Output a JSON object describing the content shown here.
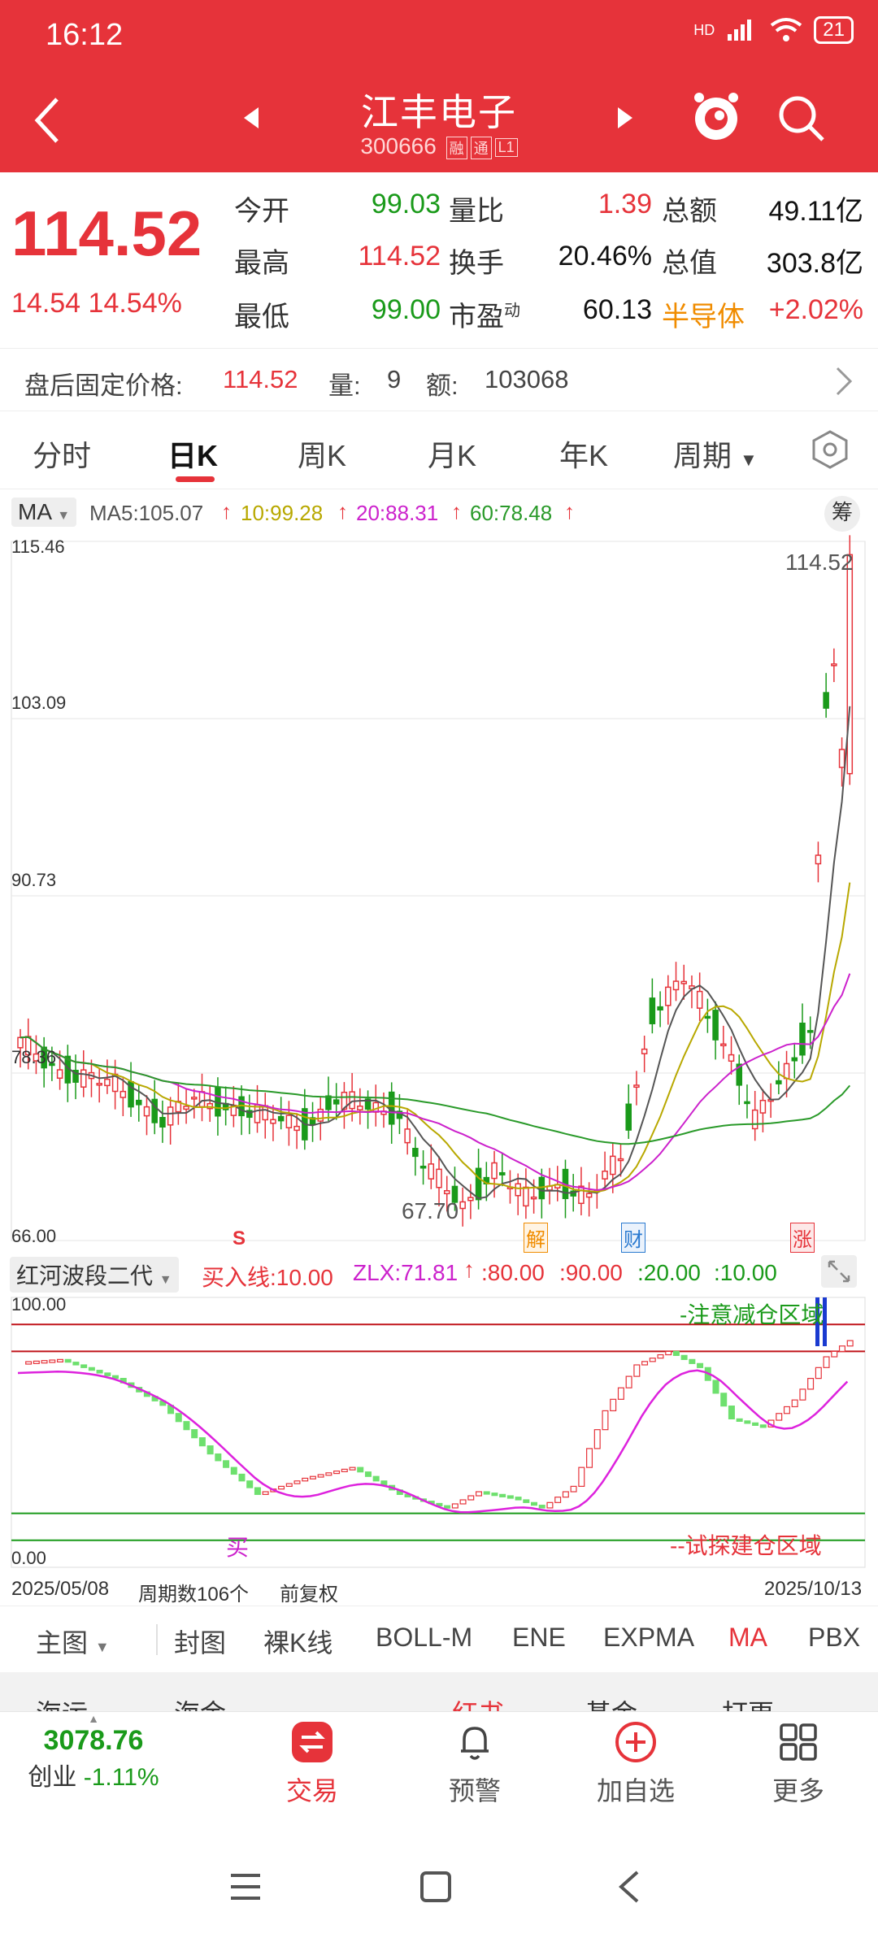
{
  "status": {
    "time": "16:12",
    "network": "HD",
    "battery": "21"
  },
  "header": {
    "stock_name": "江丰电子",
    "stock_code": "300666",
    "tags": [
      "融",
      "通",
      "L1"
    ]
  },
  "quote": {
    "price": "114.52",
    "change": "14.54",
    "change_pct": "14.54%",
    "fields": [
      {
        "label": "今开",
        "value": "99.03",
        "color": "green"
      },
      {
        "label": "量比",
        "value": "1.39",
        "color": "red"
      },
      {
        "label": "总额",
        "value": "49.11亿",
        "color": "dark"
      },
      {
        "label": "最高",
        "value": "114.52",
        "color": "red"
      },
      {
        "label": "换手",
        "value": "20.46%",
        "color": "dark"
      },
      {
        "label": "总值",
        "value": "303.8亿",
        "color": "dark"
      },
      {
        "label": "最低",
        "value": "99.00",
        "color": "green"
      },
      {
        "label": "市盈",
        "value": "60.13",
        "color": "dark"
      }
    ],
    "pe_sup": "动",
    "sector": "半导体",
    "sector_change": "+2.02%"
  },
  "fixed_price": {
    "label": "盘后固定价格:",
    "price": "114.52",
    "vol_label": "量:",
    "vol": "9",
    "amt_label": "额:",
    "amt": "103068"
  },
  "period_tabs": [
    "分时",
    "日K",
    "周K",
    "月K",
    "年K",
    "周期"
  ],
  "active_tab": "日K",
  "ma": {
    "selector": "MA",
    "ma5": "MA5:105.07",
    "ma10": "10:99.28",
    "ma20": "20:88.31",
    "ma60": "60:78.48",
    "chip_btn": "筹",
    "colors": {
      "ma5": "#555555",
      "ma10": "#b8a800",
      "ma20": "#cc22cc",
      "ma60": "#2a9a2a"
    }
  },
  "main_chart": {
    "y_labels": [
      "115.46",
      "103.09",
      "90.73",
      "78.36",
      "66.00"
    ],
    "max_label": "114.52",
    "min_label": "67.70",
    "markers": [
      {
        "text": "S",
        "color": "#e6333a"
      },
      {
        "text": "解",
        "color": "#f08c00"
      },
      {
        "text": "财",
        "color": "#2a7ad0"
      },
      {
        "text": "涨",
        "color": "#e6333a"
      }
    ]
  },
  "indicator": {
    "name": "红河波段二代",
    "buy_line": "买入线:10.00",
    "zlx": "ZLX:71.81",
    "l80": ":80.00",
    "l90": ":90.00",
    "l20": ":20.00",
    "l10": ":10.00",
    "y_top": "100.00",
    "y_bottom": "0.00",
    "zone_top": "-注意减仓区域",
    "zone_bottom": "--试探建仓区域",
    "buy_mark": "买"
  },
  "date_row": {
    "start": "2025/05/08",
    "periods": "周期数106个",
    "adjust": "前复权",
    "end": "2025/10/13"
  },
  "tools": [
    "主图",
    "封图",
    "裸K线",
    "BOLL-M",
    "ENE",
    "EXPMA",
    "MA",
    "PBX"
  ],
  "active_tool": "MA",
  "cutoff_text": [
    "海运",
    "海金",
    "红书",
    "基金",
    "打更"
  ],
  "bottom_nav": {
    "index_value": "3078.76",
    "index_label": "创业",
    "index_change": "-1.11%",
    "items": [
      "交易",
      "预警",
      "加自选",
      "更多"
    ]
  },
  "chart_data": {
    "type": "candlestick",
    "y_range": [
      66.0,
      115.46
    ],
    "last_close": 114.52,
    "ma_last": {
      "ma5": 105.07,
      "ma10": 99.28,
      "ma20": 88.31,
      "ma60": 78.48
    },
    "period_count": 106
  }
}
